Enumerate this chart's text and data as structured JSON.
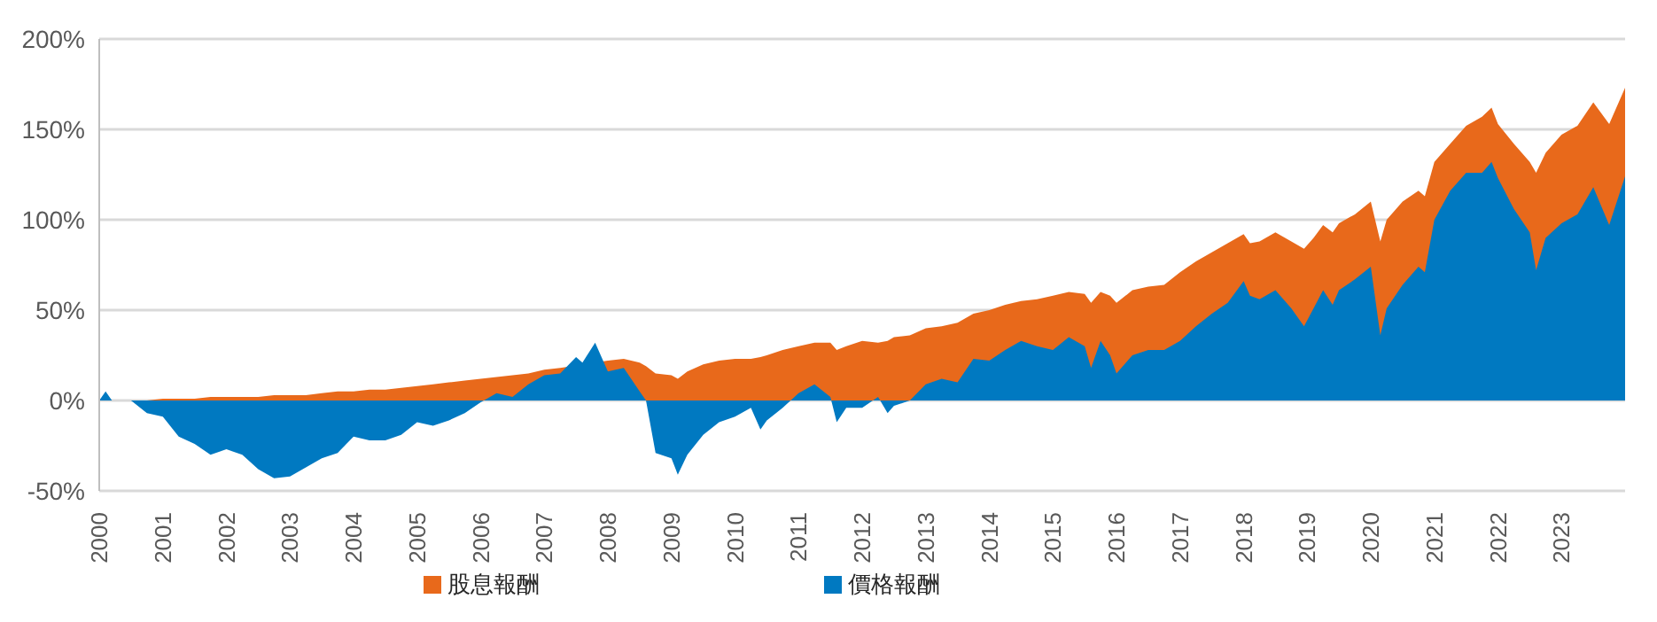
{
  "chart_data": {
    "type": "area",
    "x": [
      2000.0,
      2000.1,
      2000.2,
      2000.5,
      2000.75,
      2001.0,
      2001.25,
      2001.5,
      2001.75,
      2002.0,
      2002.25,
      2002.5,
      2002.75,
      2003.0,
      2003.25,
      2003.5,
      2003.75,
      2004.0,
      2004.25,
      2004.5,
      2004.75,
      2005.0,
      2005.25,
      2005.5,
      2005.75,
      2006.0,
      2006.25,
      2006.5,
      2006.75,
      2007.0,
      2007.25,
      2007.5,
      2007.6,
      2007.8,
      2008.0,
      2008.25,
      2008.5,
      2008.6,
      2008.75,
      2009.0,
      2009.1,
      2009.25,
      2009.5,
      2009.75,
      2010.0,
      2010.25,
      2010.4,
      2010.5,
      2010.75,
      2011.0,
      2011.25,
      2011.5,
      2011.6,
      2011.75,
      2012.0,
      2012.25,
      2012.4,
      2012.5,
      2012.75,
      2013.0,
      2013.25,
      2013.5,
      2013.75,
      2014.0,
      2014.25,
      2014.5,
      2014.75,
      2015.0,
      2015.25,
      2015.5,
      2015.6,
      2015.75,
      2015.9,
      2016.0,
      2016.25,
      2016.5,
      2016.75,
      2017.0,
      2017.25,
      2017.5,
      2017.75,
      2018.0,
      2018.1,
      2018.25,
      2018.5,
      2018.75,
      2018.95,
      2019.1,
      2019.25,
      2019.4,
      2019.5,
      2019.75,
      2020.0,
      2020.15,
      2020.25,
      2020.5,
      2020.75,
      2020.85,
      2021.0,
      2021.25,
      2021.5,
      2021.75,
      2021.9,
      2022.0,
      2022.25,
      2022.5,
      2022.6,
      2022.75,
      2023.0,
      2023.25,
      2023.5,
      2023.75,
      2024.0
    ],
    "series": [
      {
        "name": "股息報酬",
        "color": "#e8691b",
        "values": [
          0,
          0,
          0,
          0,
          0,
          1,
          1,
          1,
          2,
          2,
          2,
          2,
          3,
          3,
          3,
          4,
          5,
          5,
          6,
          6,
          7,
          8,
          9,
          10,
          11,
          12,
          13,
          14,
          15,
          17,
          18,
          null,
          null,
          null,
          22,
          23,
          21,
          19,
          15,
          14,
          12,
          16,
          20,
          22,
          23,
          23,
          24,
          25,
          28,
          30,
          32,
          32,
          28,
          30,
          33,
          32,
          33,
          35,
          36,
          40,
          41,
          43,
          48,
          50,
          53,
          55,
          56,
          58,
          60,
          59,
          54,
          60,
          58,
          54,
          61,
          63,
          64,
          71,
          77,
          82,
          87,
          92,
          87,
          88,
          93,
          88,
          84,
          90,
          97,
          93,
          98,
          103,
          110,
          88,
          100,
          110,
          116,
          113,
          132,
          142,
          152,
          157,
          162,
          153,
          142,
          132,
          126,
          137,
          147,
          152,
          165,
          153,
          173
        ]
      },
      {
        "name": "價格報酬",
        "color": "#0079c1",
        "values": [
          0,
          5,
          0,
          0,
          -7,
          -9,
          -20,
          -24,
          -30,
          -27,
          -30,
          -38,
          -43,
          -42,
          -37,
          -32,
          -29,
          -20,
          -22,
          -22,
          -19,
          -12,
          -14,
          -11,
          -7,
          -1,
          4,
          2,
          9,
          14,
          15,
          24,
          21,
          32,
          16,
          18,
          5,
          0,
          -29,
          -32,
          -41,
          -30,
          -19,
          -12,
          -9,
          -4,
          -16,
          -11,
          -4,
          4,
          9,
          2,
          -12,
          -4,
          -4,
          2,
          -7,
          -3,
          0,
          9,
          12,
          10,
          23,
          22,
          28,
          33,
          30,
          28,
          35,
          30,
          18,
          33,
          25,
          15,
          25,
          28,
          28,
          33,
          41,
          48,
          54,
          66,
          58,
          56,
          61,
          51,
          41,
          51,
          61,
          53,
          61,
          67,
          74,
          36,
          51,
          64,
          74,
          71,
          100,
          116,
          126,
          126,
          132,
          123,
          106,
          93,
          72,
          90,
          98,
          103,
          118,
          97,
          124
        ]
      }
    ],
    "xlim": [
      2000,
      2024
    ],
    "xticks": [
      2000,
      2001,
      2002,
      2003,
      2004,
      2005,
      2006,
      2007,
      2008,
      2009,
      2010,
      2011,
      2012,
      2013,
      2014,
      2015,
      2016,
      2017,
      2018,
      2019,
      2020,
      2021,
      2022,
      2023
    ],
    "ylim": [
      -50,
      200
    ],
    "yticks": [
      {
        "value": -50,
        "label": "-50%"
      },
      {
        "value": 0,
        "label": "0%"
      },
      {
        "value": 50,
        "label": "50%"
      },
      {
        "value": 100,
        "label": "100%"
      },
      {
        "value": 150,
        "label": "150%"
      },
      {
        "value": 200,
        "label": "200%"
      }
    ],
    "grid": "y",
    "legend": "bottom"
  }
}
